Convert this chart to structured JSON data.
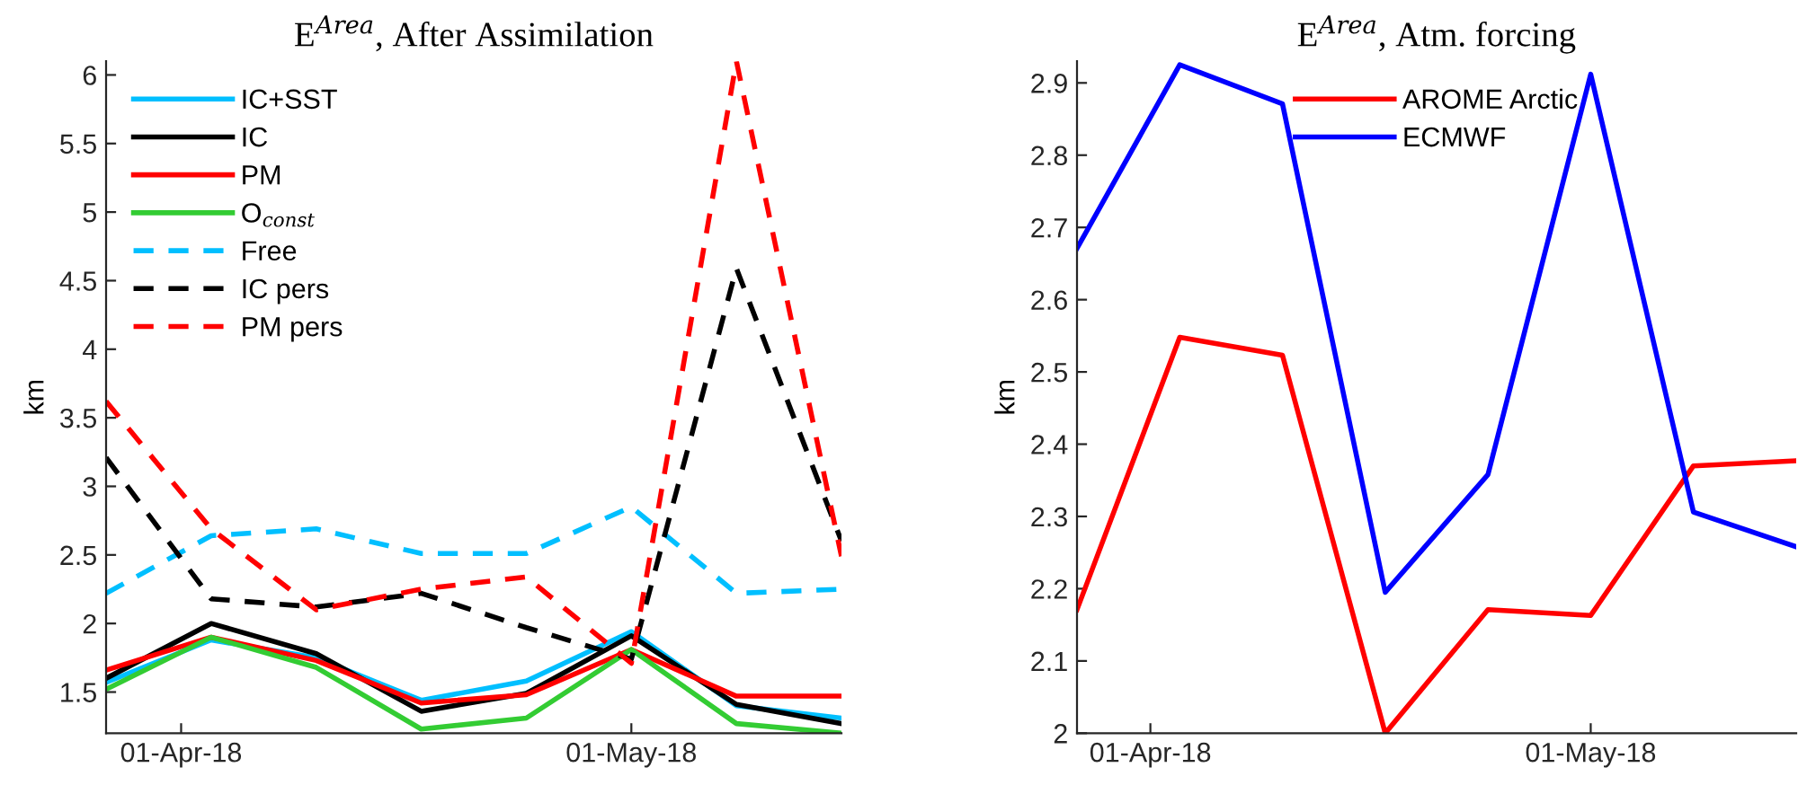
{
  "chart_data": [
    {
      "type": "line",
      "title": "E$^{Area}$, After Assimilation",
      "ylabel": "km",
      "x": [
        "2018-03-27",
        "2018-04-03",
        "2018-04-10",
        "2018-04-17",
        "2018-04-24",
        "2018-05-01",
        "2018-05-08",
        "2018-05-15"
      ],
      "xlim": [
        "2018-03-27",
        "2018-05-15"
      ],
      "xticks": [
        {
          "value": "2018-04-01",
          "label": "01-Apr-18"
        },
        {
          "value": "2018-05-01",
          "label": "01-May-18"
        }
      ],
      "ylim": [
        1.2,
        6.1
      ],
      "yticks": [
        1.5,
        2,
        2.5,
        3,
        3.5,
        4,
        4.5,
        5,
        5.5,
        6
      ],
      "legend": "top left",
      "grid": false,
      "series": [
        {
          "name": "IC+SST",
          "color": "#00bfff",
          "line_style": "solid",
          "values": [
            1.57,
            1.88,
            1.75,
            1.44,
            1.58,
            1.94,
            1.4,
            1.31
          ]
        },
        {
          "name": "IC",
          "color": "#000000",
          "line_style": "solid",
          "values": [
            1.6,
            2.0,
            1.78,
            1.36,
            1.49,
            1.91,
            1.41,
            1.27
          ]
        },
        {
          "name": "PM",
          "color": "#ff0000",
          "line_style": "solid",
          "values": [
            1.66,
            1.9,
            1.73,
            1.42,
            1.48,
            1.81,
            1.47,
            1.47
          ]
        },
        {
          "name": "O$_{const}$",
          "color": "#33cc33",
          "line_style": "solid",
          "values": [
            1.52,
            1.9,
            1.68,
            1.23,
            1.31,
            1.81,
            1.27,
            1.2
          ]
        },
        {
          "name": "Free",
          "color": "#00bfff",
          "line_style": "dashed",
          "values": [
            2.22,
            2.64,
            2.69,
            2.51,
            2.51,
            2.85,
            2.22,
            2.25
          ]
        },
        {
          "name": "IC pers",
          "color": "#000000",
          "line_style": "dashed",
          "values": [
            3.21,
            2.18,
            2.12,
            2.22,
            1.97,
            1.74,
            4.59,
            2.6
          ]
        },
        {
          "name": "PM pers",
          "color": "#ff0000",
          "line_style": "dashed",
          "values": [
            3.62,
            2.69,
            2.1,
            2.25,
            2.34,
            1.71,
            6.1,
            2.49
          ]
        }
      ]
    },
    {
      "type": "line",
      "title": "E$^{Area}$, Atm. forcing",
      "ylabel": "km",
      "x": [
        "2018-03-27",
        "2018-04-03",
        "2018-04-10",
        "2018-04-17",
        "2018-04-24",
        "2018-05-01",
        "2018-05-08",
        "2018-05-15"
      ],
      "xlim": [
        "2018-03-27",
        "2018-05-15"
      ],
      "xticks": [
        {
          "value": "2018-04-01",
          "label": "01-Apr-18"
        },
        {
          "value": "2018-05-01",
          "label": "01-May-18"
        }
      ],
      "ylim": [
        2.0,
        2.93
      ],
      "yticks": [
        2,
        2.1,
        2.2,
        2.3,
        2.4,
        2.5,
        2.6,
        2.7,
        2.8,
        2.9
      ],
      "legend": "top",
      "grid": false,
      "series": [
        {
          "name": "AROME Arctic",
          "color": "#ff0000",
          "line_style": "solid",
          "values": [
            2.171,
            2.548,
            2.523,
            2.0,
            2.171,
            2.163,
            2.37,
            2.377
          ]
        },
        {
          "name": "ECMWF",
          "color": "#0000ff",
          "line_style": "solid",
          "values": [
            2.671,
            2.925,
            2.871,
            2.195,
            2.358,
            2.912,
            2.306,
            2.258
          ]
        }
      ]
    }
  ]
}
